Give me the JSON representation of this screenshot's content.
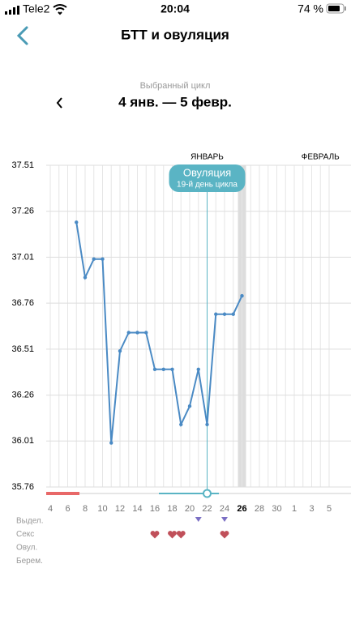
{
  "status_bar": {
    "carrier": "Tele2",
    "time": "20:04",
    "battery": "74 %"
  },
  "header": {
    "title": "БТТ и овуляция"
  },
  "cycle": {
    "caption": "Выбранный цикл",
    "range": "4 янв. — 5 февр."
  },
  "chart_data": {
    "type": "line",
    "months": [
      {
        "label": "ЯНВАРЬ",
        "index": 18
      },
      {
        "label": "ФЕВРАЛЬ",
        "index": 31
      }
    ],
    "categories": [
      "4",
      null,
      "6",
      null,
      "8",
      null,
      "10",
      null,
      "12",
      null,
      "14",
      null,
      "16",
      null,
      "18",
      null,
      "20",
      null,
      "22",
      null,
      "24",
      null,
      "26",
      null,
      "28",
      null,
      "30",
      null,
      "1",
      null,
      "3",
      null,
      "5"
    ],
    "series": [
      {
        "color": "#4a8ac4",
        "values": [
          null,
          null,
          null,
          37.2,
          36.9,
          37.0,
          37.0,
          36.0,
          36.5,
          36.6,
          36.6,
          36.6,
          36.4,
          36.4,
          36.4,
          36.1,
          36.2,
          36.4,
          36.1,
          36.7,
          36.7,
          36.7,
          36.8,
          null,
          null,
          null,
          null,
          null,
          null,
          null,
          null,
          null,
          null
        ]
      }
    ],
    "ylim": [
      35.76,
      37.51
    ],
    "yticks": [
      35.76,
      36.01,
      36.26,
      36.51,
      36.76,
      37.01,
      37.26,
      37.51
    ],
    "grid": true,
    "today_index": 22,
    "ovulation": {
      "index": 18,
      "title": "Овуляция",
      "subtitle": "19-й день цикла"
    },
    "rows": [
      {
        "label": "Выдел.",
        "days": [
          17,
          20
        ]
      },
      {
        "label": "Секс",
        "days": [
          12,
          14,
          15,
          20
        ]
      },
      {
        "label": "Овул.",
        "days": []
      },
      {
        "label": "Берем.",
        "days": []
      }
    ]
  }
}
